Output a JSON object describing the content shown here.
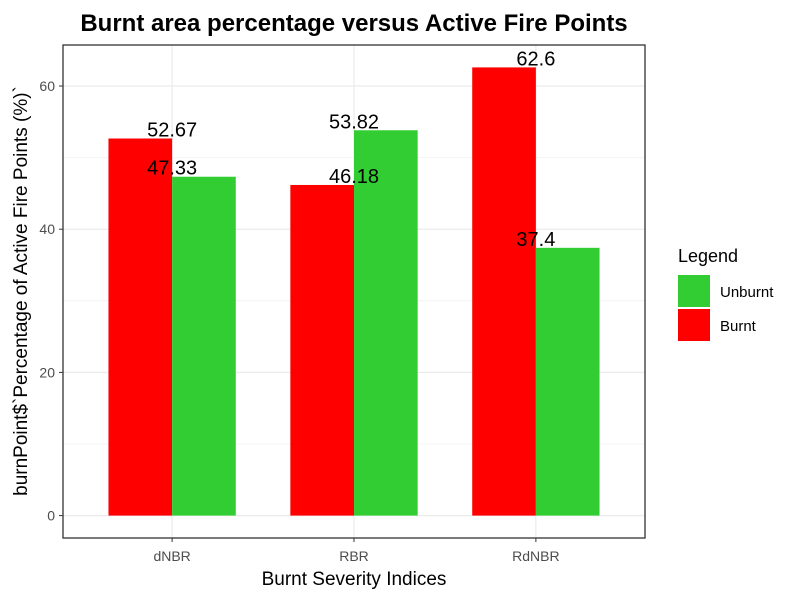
{
  "chart_data": {
    "type": "bar",
    "title": "Burnt area percentage versus Active Fire Points",
    "xlabel": "Burnt Severity Indices",
    "ylabel": "burnPoint$`Percentage of Active Fire Points (%)`",
    "categories": [
      "dNBR",
      "RBR",
      "RdNBR"
    ],
    "series": [
      {
        "name": "Burnt",
        "color": "#ff0000",
        "values": [
          52.67,
          46.18,
          62.6
        ],
        "labels": [
          "52.67",
          "46.18",
          "62.6"
        ]
      },
      {
        "name": "Unburnt",
        "color": "#32cd32",
        "values": [
          47.33,
          53.82,
          37.4
        ],
        "labels": [
          "47.33",
          "53.82",
          "37.4"
        ]
      }
    ],
    "ylim": [
      -3.13,
      65.73
    ],
    "yticks": [
      0,
      20,
      40,
      60
    ],
    "grid": true,
    "legend": {
      "title": "Legend",
      "position": "right",
      "entries": [
        {
          "name": "Unburnt",
          "color": "#32cd32"
        },
        {
          "name": "Burnt",
          "color": "#ff0000"
        }
      ]
    }
  }
}
